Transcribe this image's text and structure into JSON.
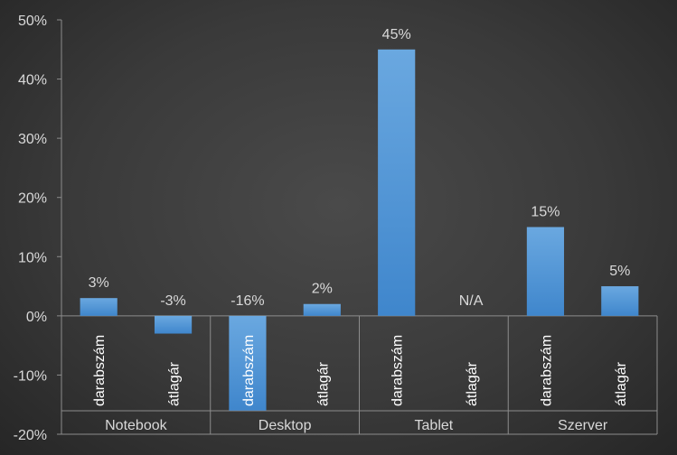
{
  "chart_data": {
    "type": "bar",
    "title": "",
    "xlabel": "",
    "ylabel": "",
    "ylim": [
      -20,
      50
    ],
    "yticks": [
      -20,
      -10,
      0,
      10,
      20,
      30,
      40,
      50
    ],
    "ytick_labels": [
      "-20%",
      "-10%",
      "0%",
      "10%",
      "20%",
      "30%",
      "40%",
      "50%"
    ],
    "groups": [
      "Notebook",
      "Desktop",
      "Tablet",
      "Szerver"
    ],
    "subcategories": [
      "darabszám",
      "átlagár"
    ],
    "bars": [
      {
        "group": "Notebook",
        "sub": "darabszám",
        "value": 3,
        "label": "3%"
      },
      {
        "group": "Notebook",
        "sub": "átlagár",
        "value": -3,
        "label": "-3%"
      },
      {
        "group": "Desktop",
        "sub": "darabszám",
        "value": -16,
        "label": "-16%"
      },
      {
        "group": "Desktop",
        "sub": "átlagár",
        "value": 2,
        "label": "2%"
      },
      {
        "group": "Tablet",
        "sub": "darabszám",
        "value": 45,
        "label": "45%"
      },
      {
        "group": "Tablet",
        "sub": "átlagár",
        "value": null,
        "label": "N/A"
      },
      {
        "group": "Szerver",
        "sub": "darabszám",
        "value": 15,
        "label": "15%"
      },
      {
        "group": "Szerver",
        "sub": "átlagár",
        "value": 5,
        "label": "5%"
      }
    ],
    "grid": false,
    "bar_color": "#5b9bd5",
    "axis_color": "#8c8c8c",
    "text_color": "#d9d9d9"
  }
}
